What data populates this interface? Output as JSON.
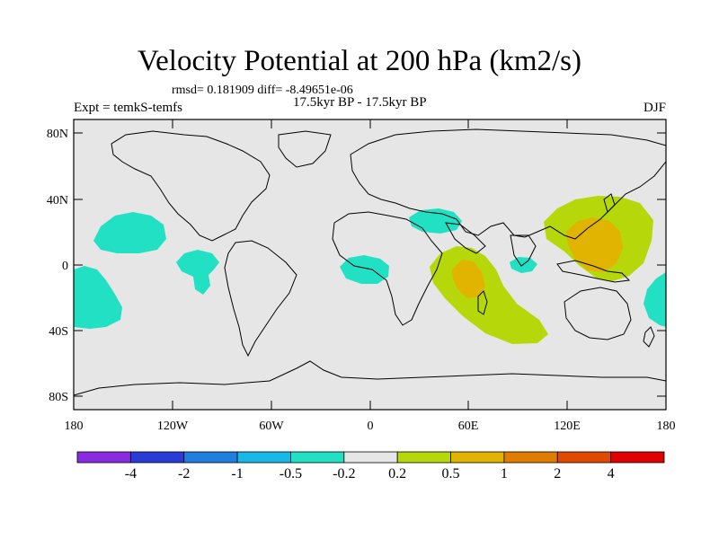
{
  "title": "Velocity Potential at 200 hPa (km2/s)",
  "stats_text": "rmsd= 0.181909 diff= -8.49651e-06",
  "period": "17.5kyr BP - 17.5kyr BP",
  "experiment": "Expt = temkS-temfs",
  "season": "DJF",
  "lat_ticks": [
    "80N",
    "40N",
    "0",
    "40S",
    "80S"
  ],
  "lon_ticks": [
    "180",
    "120W",
    "60W",
    "0",
    "60E",
    "120E",
    "180"
  ],
  "colorbar": {
    "colors": [
      "#8a2be2",
      "#2a3cd6",
      "#1f7fe0",
      "#18b8e8",
      "#22e0c4",
      "#e6e6e6",
      "#b6d80a",
      "#e0b400",
      "#e07c00",
      "#e04a00",
      "#e00000"
    ],
    "labels": [
      "-4",
      "-2",
      "-1",
      "-0.5",
      "-0.2",
      "0.2",
      "0.5",
      "1",
      "2",
      "4"
    ]
  },
  "colors": {
    "ocean": "#e6e6e6",
    "negative_fill": "#22e0c4",
    "positive_fill": "#b6d80a",
    "strong_positive_fill": "#e0b400"
  }
}
